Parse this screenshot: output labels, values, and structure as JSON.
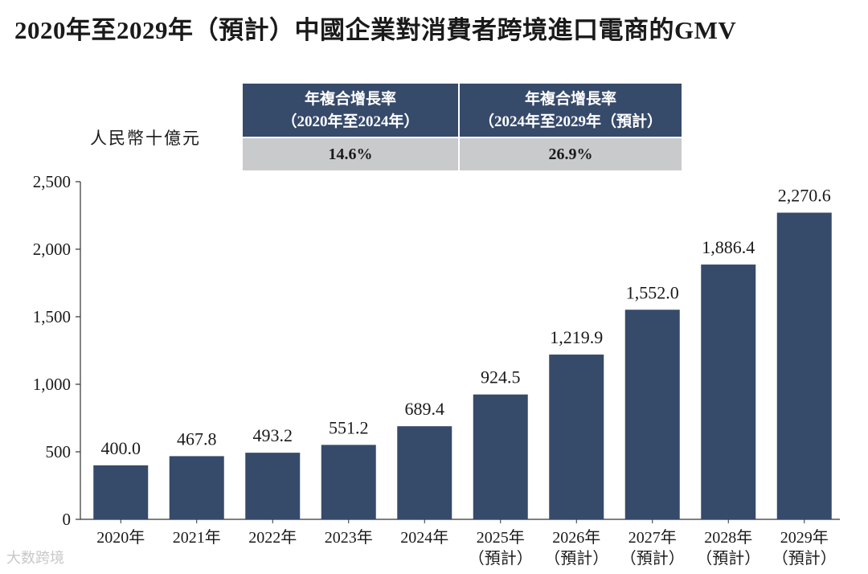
{
  "title": "2020年至2029年（預計）中國企業對消費者跨境進口電商的GMV",
  "unit": "人民幣十億元",
  "cagr": [
    {
      "line1": "年複合增長率",
      "line2": "（2020年至2024年）",
      "value": "14.6%"
    },
    {
      "line1": "年複合增長率",
      "line2": "（2024年至2029年（預計）",
      "value": "26.9%"
    }
  ],
  "watermark": "大数跨境",
  "colors": {
    "bar": "#364a6a",
    "header": "#364a6a",
    "value_row": "#c9cacc"
  },
  "chart_data": {
    "type": "bar",
    "title": "2020年至2029年（預計）中國企業對消費者跨境進口電商的GMV",
    "ylabel": "人民幣十億元",
    "xlabel": "",
    "ylim": [
      0,
      2500
    ],
    "yticks": [
      0,
      500,
      1000,
      1500,
      2000,
      2500
    ],
    "ytick_labels": [
      "0",
      "500",
      "1,000",
      "1,500",
      "2,000",
      "2,500"
    ],
    "categories": [
      "2020年",
      "2021年",
      "2022年",
      "2023年",
      "2024年",
      "2025年",
      "2026年",
      "2027年",
      "2028年",
      "2029年"
    ],
    "category_sublabels": [
      "",
      "",
      "",
      "",
      "",
      "（預計）",
      "（預計）",
      "（預計）",
      "（預計）",
      "（預計）"
    ],
    "values": [
      400.0,
      467.8,
      493.2,
      551.2,
      689.4,
      924.5,
      1219.9,
      1552.0,
      1886.4,
      2270.6
    ],
    "value_labels": [
      "400.0",
      "467.8",
      "493.2",
      "551.2",
      "689.4",
      "924.5",
      "1,219.9",
      "1,552.0",
      "1,886.4",
      "2,270.6"
    ],
    "grid": false,
    "legend": "none"
  }
}
